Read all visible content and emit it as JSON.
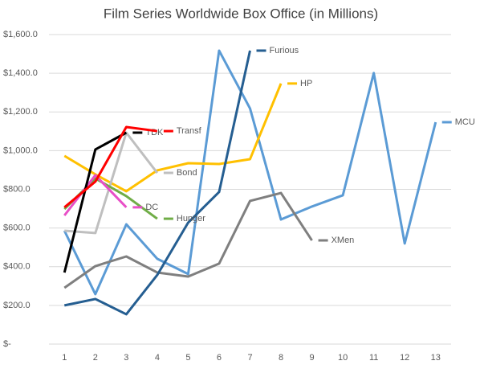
{
  "chart_data": {
    "type": "line",
    "title": "Film Series Worldwide Box Office (in Millions)",
    "categories": [
      "1",
      "2",
      "3",
      "4",
      "5",
      "6",
      "7",
      "8",
      "9",
      "10",
      "11",
      "12",
      "13"
    ],
    "ylim": [
      0,
      1600
    ],
    "yticks": [
      {
        "value": 0,
        "label": "$-"
      },
      {
        "value": 200,
        "label": "$200.0"
      },
      {
        "value": 400,
        "label": "$400.0"
      },
      {
        "value": 600,
        "label": "$600.0"
      },
      {
        "value": 800,
        "label": "$800.0"
      },
      {
        "value": 1000,
        "label": "$1,000.0"
      },
      {
        "value": 1200,
        "label": "$1,200.0"
      },
      {
        "value": 1400,
        "label": "$1,400.0"
      },
      {
        "value": 1600,
        "label": "$1,600.0"
      }
    ],
    "grid": true,
    "series": [
      {
        "name": "MCU",
        "color": "#5b9bd5",
        "values": [
          586,
          258,
          619,
          441,
          362,
          1517,
          1218,
          644,
          711,
          769,
          1401,
          520,
          1147
        ]
      },
      {
        "name": "XMen",
        "color": "#7f7f7f",
        "values": [
          291,
          403,
          453,
          370,
          349,
          416,
          740,
          781,
          536,
          null,
          null,
          null,
          null
        ]
      },
      {
        "name": "HP",
        "color": "#ffc000",
        "values": [
          973,
          877,
          790,
          898,
          935,
          931,
          956,
          1347,
          null,
          null,
          null,
          null,
          null
        ]
      },
      {
        "name": "Furious",
        "color": "#255e91",
        "values": [
          200,
          233,
          154,
          357,
          628,
          786,
          1517,
          null,
          null,
          null,
          null,
          null,
          null
        ]
      },
      {
        "name": "Bond",
        "color": "#bfbfbf",
        "values": [
          586,
          574,
          1093,
          885,
          null,
          null,
          null,
          null,
          null,
          null,
          null,
          null,
          null
        ]
      },
      {
        "name": "Hunger",
        "color": "#70ad47",
        "values": [
          698,
          856,
          765,
          648,
          null,
          null,
          null,
          null,
          null,
          null,
          null,
          null,
          null
        ]
      },
      {
        "name": "DC",
        "color": "#e84fc7",
        "values": [
          665,
          873,
          707,
          null,
          null,
          null,
          null,
          null,
          null,
          null,
          null,
          null,
          null
        ]
      },
      {
        "name": "TDK",
        "color": "#000000",
        "values": [
          370,
          1006,
          1093,
          null,
          null,
          null,
          null,
          null,
          null,
          null,
          null,
          null,
          null
        ]
      },
      {
        "name": "Transf",
        "color": "#ff0000",
        "values": [
          707,
          840,
          1122,
          1101,
          null,
          null,
          null,
          null,
          null,
          null,
          null,
          null,
          null
        ]
      }
    ]
  }
}
